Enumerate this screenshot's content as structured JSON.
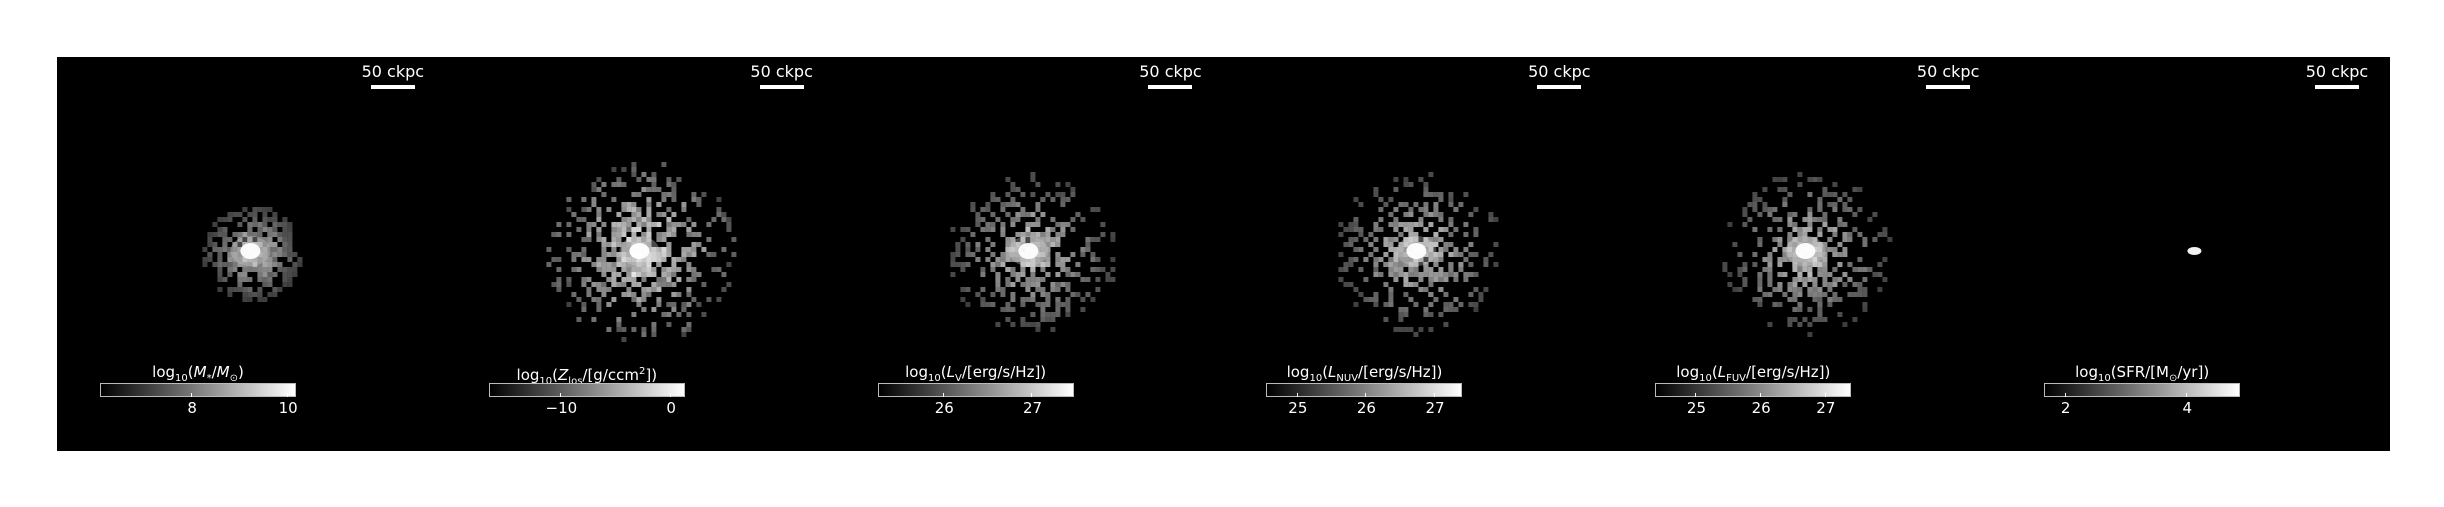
{
  "figure": {
    "scale_label": "50 ckpc",
    "panels": [
      {
        "key": "stellar-mass",
        "cb_label_html": "log<sub>10</sub>(<i>M</i><sub>*</sub>/<i>M</i><sub>⊙</sub>)",
        "ticks": [
          {
            "label": "8",
            "frac": 0.47
          },
          {
            "label": "10",
            "frac": 0.96
          }
        ],
        "blob": {
          "spread": 0.35,
          "density": 0.55,
          "core": 1.0,
          "fill": 0.0
        }
      },
      {
        "key": "metallicity",
        "cb_label_html": "log<sub>10</sub>(<i>Z</i><sub>los</sub>/[g/ccm<sup>2</sup>])",
        "ticks": [
          {
            "label": "−10",
            "frac": 0.37
          },
          {
            "label": "0",
            "frac": 0.93
          }
        ],
        "blob": {
          "spread": 1.0,
          "density": 0.75,
          "core": 1.0,
          "fill": 0.75
        }
      },
      {
        "key": "v-band",
        "cb_label_html": "log<sub>10</sub>(<i>L</i><sub>V</sub>/[erg/s/Hz])",
        "ticks": [
          {
            "label": "26",
            "frac": 0.34
          },
          {
            "label": "27",
            "frac": 0.79
          }
        ],
        "blob": {
          "spread": 0.85,
          "density": 0.55,
          "core": 1.0,
          "fill": 0.2
        }
      },
      {
        "key": "nuv",
        "cb_label_html": "log<sub>10</sub>(<i>L</i><sub>NUV</sub>/[erg/s/Hz])",
        "ticks": [
          {
            "label": "25",
            "frac": 0.16
          },
          {
            "label": "26",
            "frac": 0.51
          },
          {
            "label": "27",
            "frac": 0.86
          }
        ],
        "blob": {
          "spread": 0.85,
          "density": 0.55,
          "core": 1.0,
          "fill": 0.2
        }
      },
      {
        "key": "fuv",
        "cb_label_html": "log<sub>10</sub>(<i>L</i><sub>FUV</sub>/[erg/s/Hz])",
        "ticks": [
          {
            "label": "25",
            "frac": 0.21
          },
          {
            "label": "26",
            "frac": 0.54
          },
          {
            "label": "27",
            "frac": 0.87
          }
        ],
        "blob": {
          "spread": 0.85,
          "density": 0.55,
          "core": 1.0,
          "fill": 0.2
        }
      },
      {
        "key": "sfr",
        "cb_label_html": "log<sub>10</sub>(SFR/[M<sub>⊙</sub>/yr])",
        "ticks": [
          {
            "label": "2",
            "frac": 0.11
          },
          {
            "label": "4",
            "frac": 0.73
          }
        ],
        "blob": {
          "spread": 0.0,
          "density": 0.0,
          "core": 1.0,
          "fill": 0.0
        }
      }
    ]
  }
}
